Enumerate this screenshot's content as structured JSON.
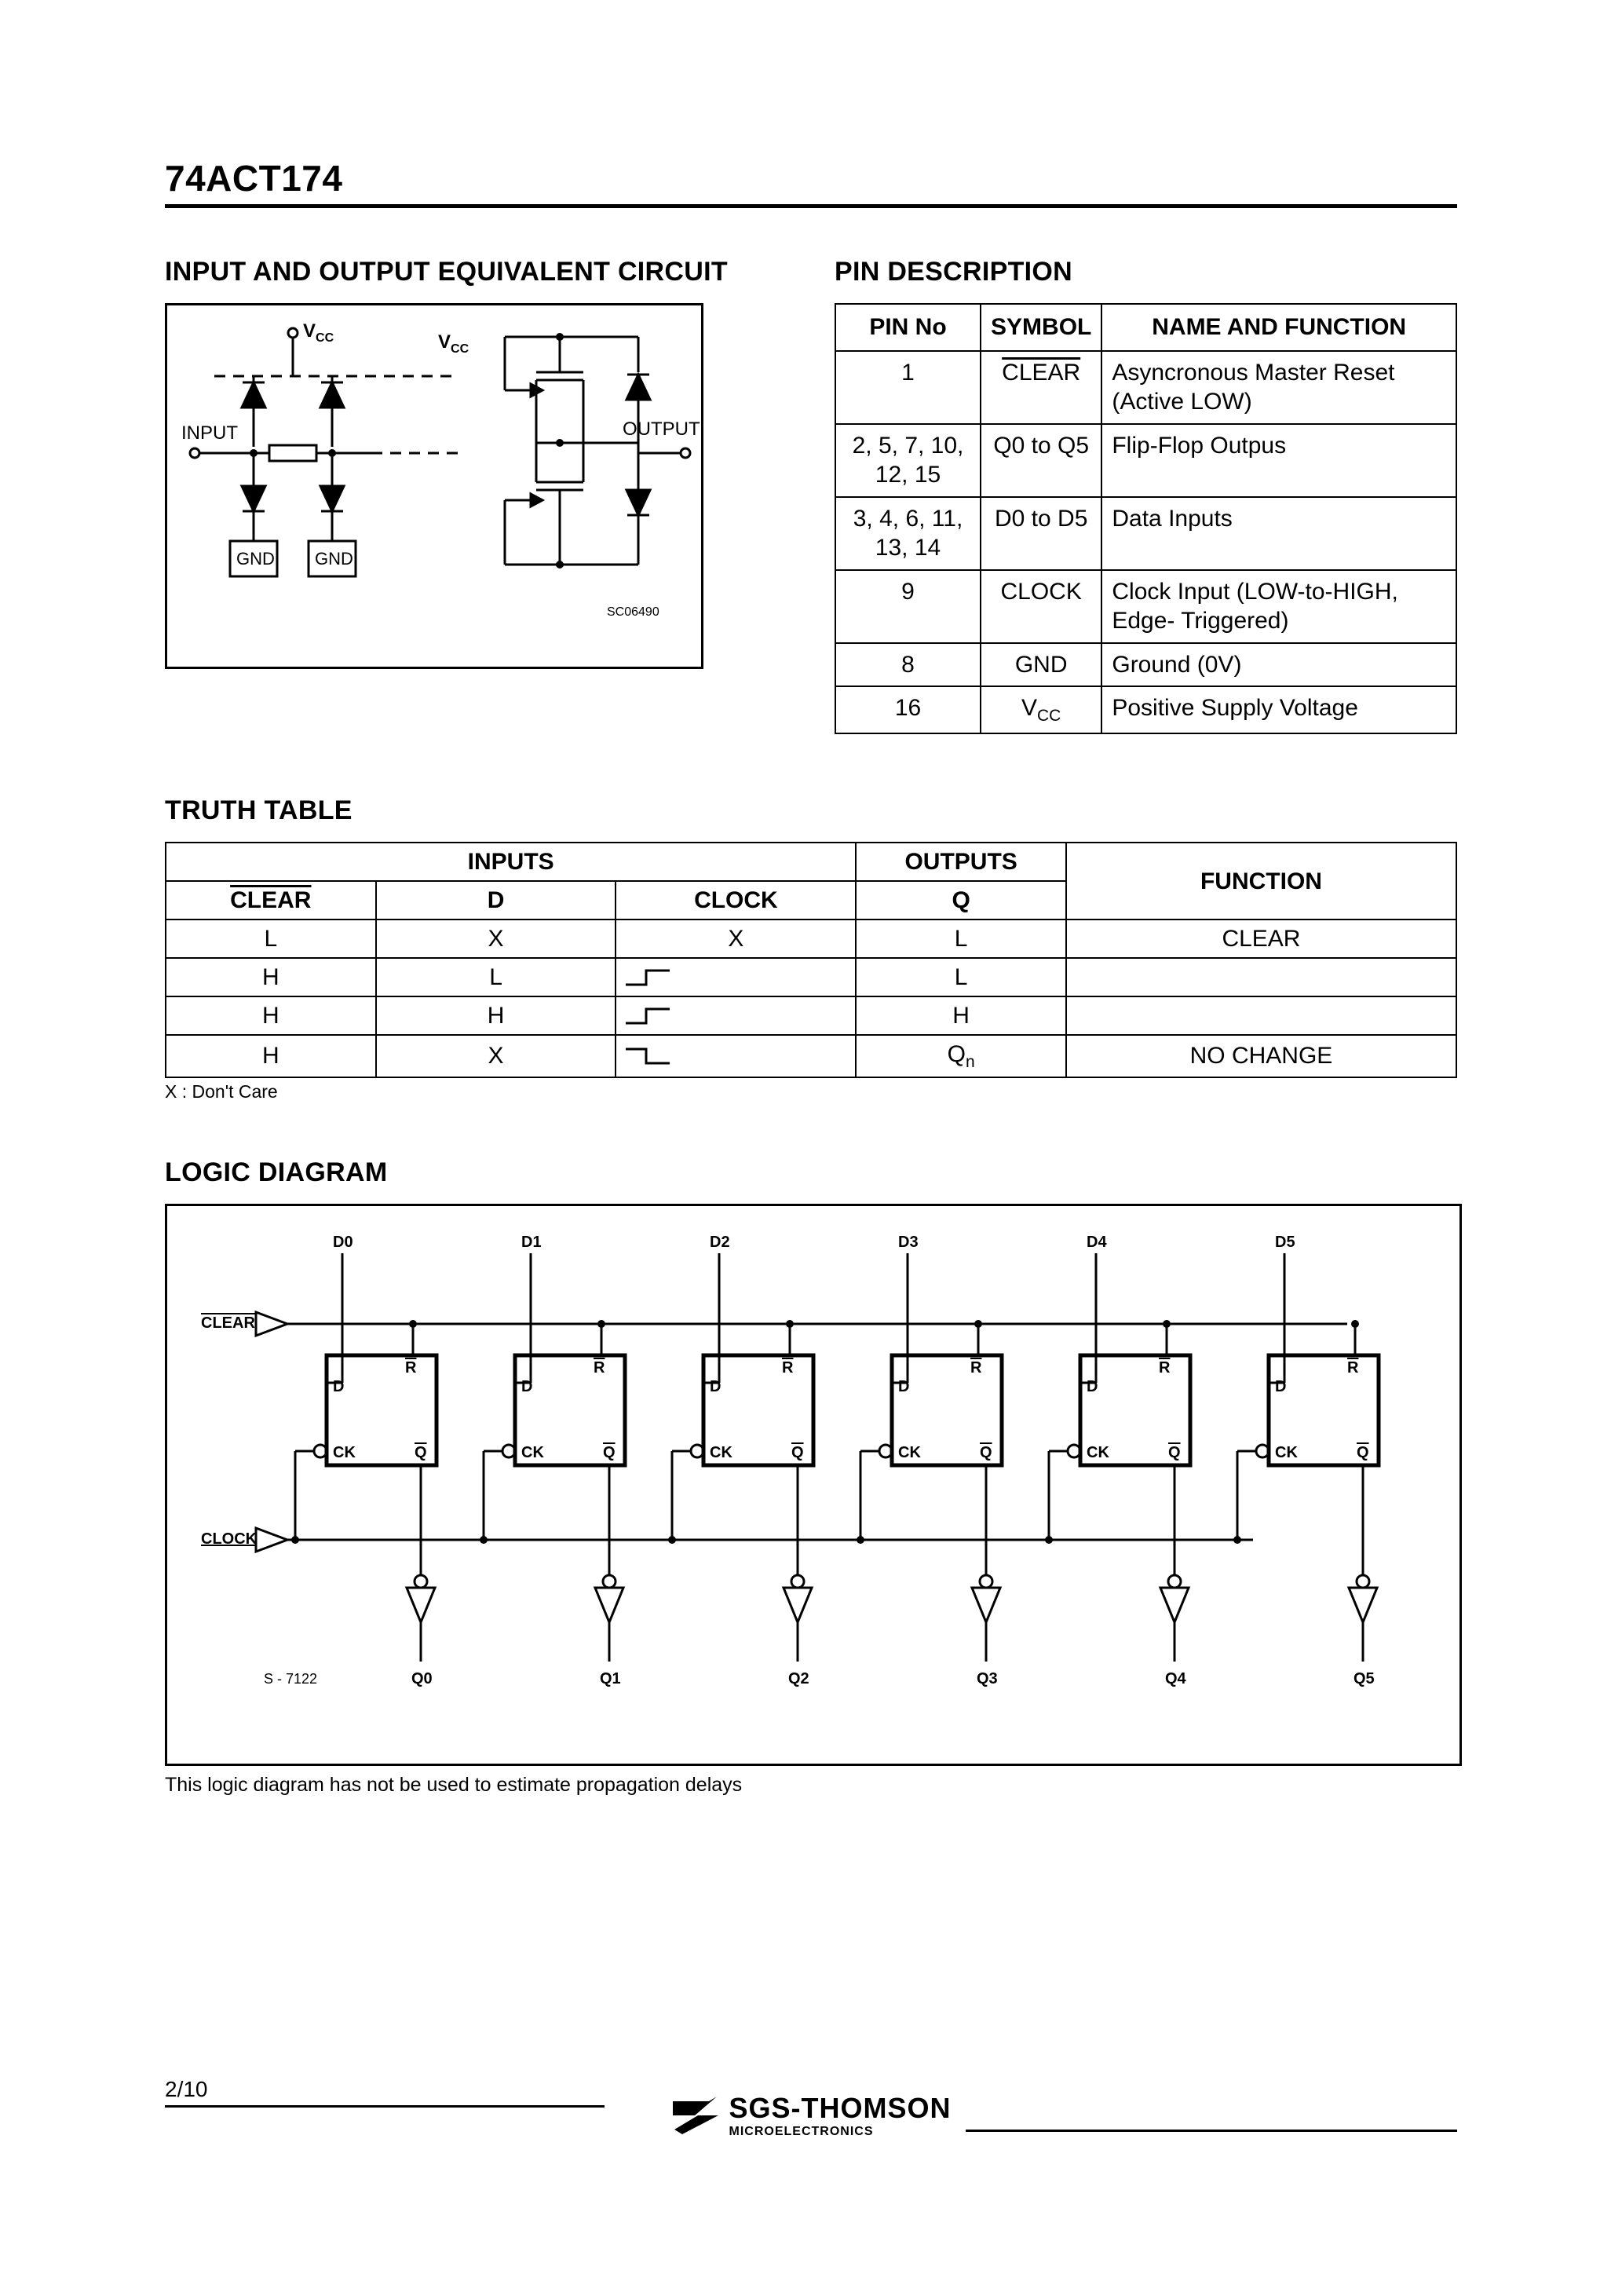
{
  "header": {
    "part_number": "74ACT174"
  },
  "io_section": {
    "title": "INPUT AND OUTPUT EQUIVALENT CIRCUIT"
  },
  "io_diagram": {
    "labels": {
      "vcc1": "V",
      "vcc2": "V",
      "cc": "CC",
      "input": "INPUT",
      "output": "OUTPUT",
      "gnd": "GND",
      "code": "SC06490"
    },
    "colors": {
      "stroke": "#000000",
      "bg": "#ffffff"
    }
  },
  "pin_section": {
    "title": "PIN DESCRIPTION",
    "headers": [
      "PIN No",
      "SYMBOL",
      "NAME AND FUNCTION"
    ],
    "rows": [
      {
        "pin": "1",
        "symbol_over": "CLEAR",
        "name": "Asyncronous Master Reset (Active LOW)"
      },
      {
        "pin": "2, 5, 7, 10, 12, 15",
        "symbol": "Q0 to Q5",
        "name": "Flip-Flop Outpus"
      },
      {
        "pin": "3, 4, 6, 11, 13, 14",
        "symbol": "D0 to D5",
        "name": "Data Inputs"
      },
      {
        "pin": "9",
        "symbol": "CLOCK",
        "name": "Clock Input (LOW-to-HIGH, Edge- Triggered)"
      },
      {
        "pin": "8",
        "symbol": "GND",
        "name": "Ground (0V)"
      },
      {
        "pin": "16",
        "symbol_vcc": "V",
        "name": "Positive Supply Voltage"
      }
    ]
  },
  "truth_section": {
    "title": "TRUTH TABLE",
    "group_headers": {
      "inputs": "INPUTS",
      "outputs": "OUTPUTS",
      "function": "FUNCTION"
    },
    "sub_headers": {
      "clear": "CLEAR",
      "d": "D",
      "clock": "CLOCK",
      "q": "Q"
    },
    "rows": [
      {
        "clear": "L",
        "d": "X",
        "clock": "X",
        "q": "L",
        "func": "CLEAR"
      },
      {
        "clear": "H",
        "d": "L",
        "clock_edge": "rise",
        "q": "L",
        "func": ""
      },
      {
        "clear": "H",
        "d": "H",
        "clock_edge": "rise",
        "q": "H",
        "func": ""
      },
      {
        "clear": "H",
        "d": "X",
        "clock_edge": "fall",
        "q_sub": "Q",
        "q_subn": "n",
        "func": "NO CHANGE"
      }
    ],
    "footnote": "X : Don't Care"
  },
  "logic_section": {
    "title": "LOGIC DIAGRAM",
    "caption": "This logic diagram has not be used to estimate propagation delays",
    "labels": {
      "d_inputs": [
        "D0",
        "D1",
        "D2",
        "D3",
        "D4",
        "D5"
      ],
      "q_outputs": [
        "Q0",
        "Q1",
        "Q2",
        "Q3",
        "Q4",
        "Q5"
      ],
      "clear": "CLEAR",
      "clock": "CLOCK",
      "ff": {
        "r": "R",
        "d": "D",
        "ck": "CK",
        "qbar": "Q"
      },
      "code": "S - 7122"
    },
    "colors": {
      "stroke": "#000000"
    }
  },
  "footer": {
    "page": "2/10",
    "logo_main": "SGS-THOMSON",
    "logo_sub": "MICROELECTRONICS"
  }
}
